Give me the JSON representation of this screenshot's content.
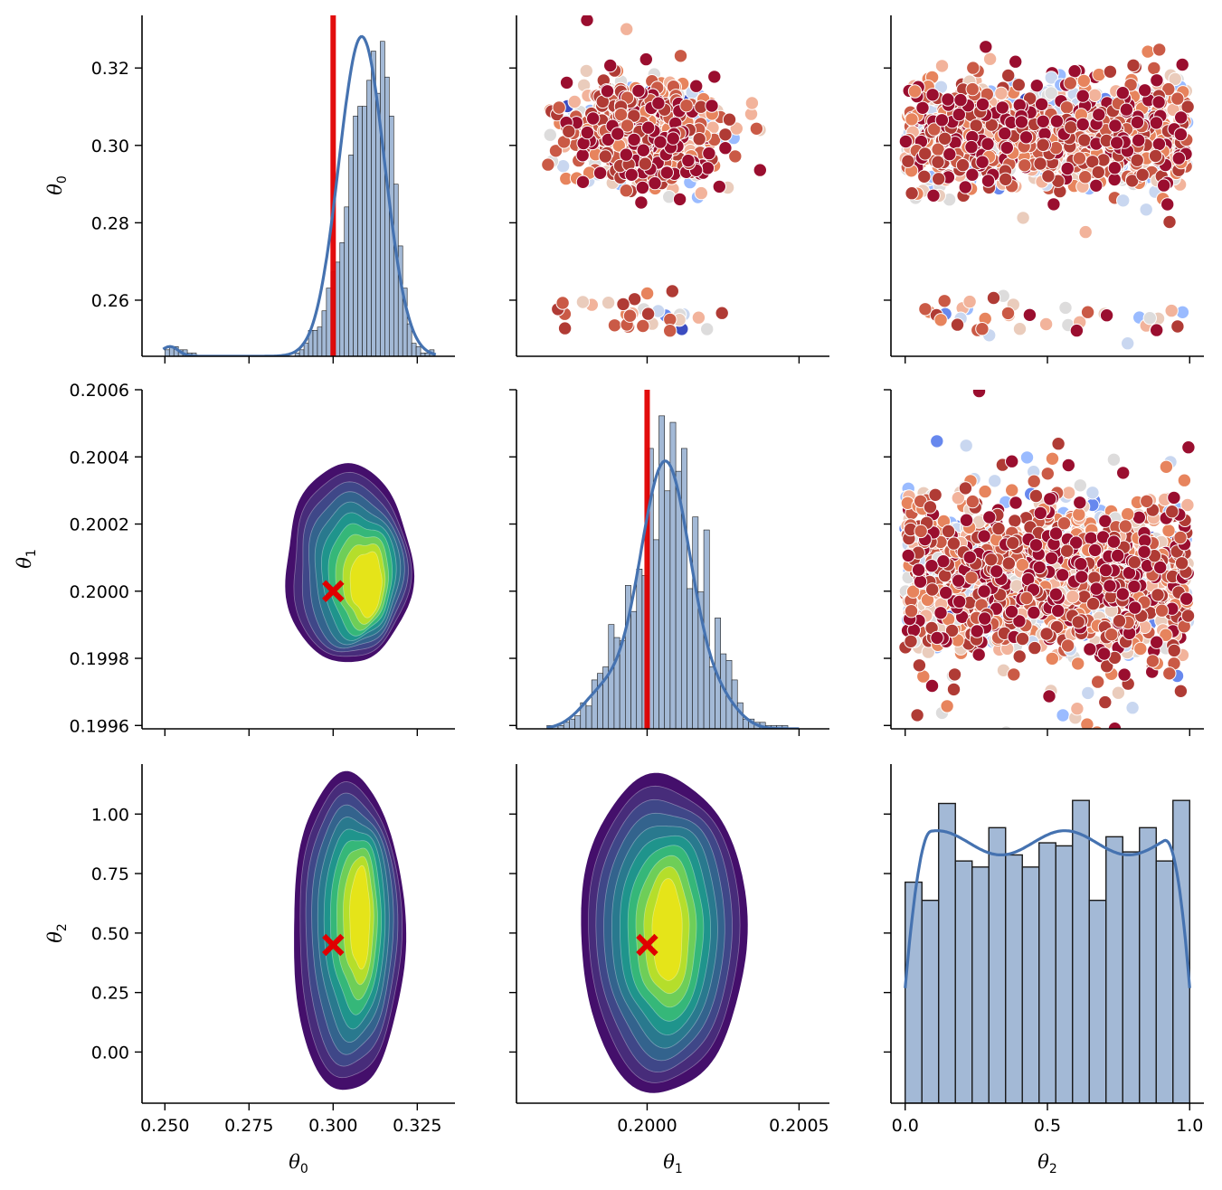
{
  "chart_data": {
    "type": "pairplot",
    "variables": [
      "θ0",
      "θ1",
      "θ2"
    ],
    "axis_labels": [
      {
        "symbol": "θ",
        "sub": "0"
      },
      {
        "symbol": "θ",
        "sub": "1"
      },
      {
        "symbol": "θ",
        "sub": "2"
      }
    ],
    "axes": [
      {
        "name": "θ0",
        "lim_x": [
          0.2432,
          0.3362
        ],
        "lim_y": [
          0.2455,
          0.3336
        ],
        "ticks_x": [
          0.25,
          0.275,
          0.3,
          0.325
        ],
        "tick_labels_x": [
          "0.250",
          "0.275",
          "0.300",
          "0.325"
        ],
        "ticks_y": [
          0.26,
          0.28,
          0.3,
          0.32
        ],
        "tick_labels_y": [
          "0.26",
          "0.28",
          "0.30",
          "0.32"
        ]
      },
      {
        "name": "θ1",
        "lim_x": [
          0.19957,
          0.2006
        ],
        "lim_y": [
          0.19959,
          0.2006
        ],
        "ticks_x": [
          0.2,
          0.2005
        ],
        "tick_labels_x": [
          "0.2000",
          "0.2005"
        ],
        "ticks_y": [
          0.1996,
          0.1998,
          0.2,
          0.2002,
          0.2004,
          0.2006
        ],
        "tick_labels_y": [
          "0.1996",
          "0.1998",
          "0.2000",
          "0.2002",
          "0.2004",
          "0.2006"
        ]
      },
      {
        "name": "θ2",
        "lim_x": [
          -0.05,
          1.05
        ],
        "lim_y": [
          -0.215,
          1.21
        ],
        "ticks_x": [
          0.0,
          0.5,
          1.0
        ],
        "tick_labels_x": [
          "0.0",
          "0.5",
          "1.0"
        ],
        "ticks_y": [
          0.0,
          0.25,
          0.5,
          0.75,
          1.0
        ],
        "tick_labels_y": [
          "0.00",
          "0.25",
          "0.50",
          "0.75",
          "1.00"
        ]
      }
    ],
    "true_values": {
      "θ0": 0.3,
      "θ1": 0.2,
      "θ2": 0.45
    },
    "diagonal": [
      {
        "variable": "θ0",
        "type": "histogram+kde",
        "bin_range": [
          0.25,
          0.33
        ],
        "bins": 60,
        "counts_relative": [
          0.02,
          0.03,
          0.03,
          0.02,
          0.02,
          0.01,
          0.01,
          0,
          0,
          0,
          0,
          0,
          0,
          0,
          0,
          0,
          0,
          0,
          0,
          0,
          0,
          0,
          0,
          0,
          0,
          0,
          0,
          0,
          0,
          0.01,
          0.02,
          0.04,
          0.08,
          0.08,
          0.09,
          0.14,
          0.21,
          0.26,
          0.29,
          0.35,
          0.46,
          0.62,
          0.74,
          0.77,
          0.77,
          0.85,
          0.94,
          0.81,
          0.97,
          0.86,
          0.74,
          0.53,
          0.34,
          0.21,
          0.1,
          0.04,
          0.03,
          0.01,
          0.01,
          0.02
        ],
        "kde_peak_x": 0.3085
      },
      {
        "variable": "θ1",
        "type": "histogram+kde",
        "bin_range": [
          0.19967,
          0.2005
        ],
        "bins": 45,
        "counts_relative": [
          0.01,
          0.01,
          0.01,
          0.02,
          0.03,
          0.04,
          0.08,
          0.07,
          0.15,
          0.17,
          0.19,
          0.32,
          0.28,
          0.27,
          0.44,
          0.36,
          0.49,
          0.47,
          0.86,
          0.58,
          0.96,
          0.73,
          0.94,
          0.79,
          0.86,
          0.43,
          0.65,
          0.42,
          0.61,
          0.19,
          0.34,
          0.23,
          0.21,
          0.15,
          0.08,
          0.03,
          0.03,
          0.02,
          0.02,
          0.01,
          0.01,
          0.01,
          0.01,
          0,
          0
        ],
        "kde_peak_x": 0.20006
      },
      {
        "variable": "θ2",
        "type": "histogram+kde",
        "bin_range": [
          0.0,
          1.0
        ],
        "bins": 17,
        "counts_relative": [
          0.73,
          0.67,
          0.99,
          0.8,
          0.78,
          0.91,
          0.82,
          0.78,
          0.86,
          0.85,
          1.0,
          0.67,
          0.88,
          0.83,
          0.91,
          0.8,
          1.0
        ]
      }
    ],
    "lower": [
      {
        "x": "θ0",
        "y": "θ1",
        "type": "kde_filled",
        "cmap": "viridis",
        "levels": 10,
        "marker": {
          "x": 0.3,
          "y": 0.2,
          "shape": "X",
          "color": "#e00000"
        }
      },
      {
        "x": "θ0",
        "y": "θ2",
        "type": "kde_filled",
        "cmap": "viridis",
        "levels": 10,
        "marker": {
          "x": 0.3,
          "y": 0.45,
          "shape": "X",
          "color": "#e00000"
        }
      },
      {
        "x": "θ1",
        "y": "θ2",
        "type": "kde_filled",
        "cmap": "viridis",
        "levels": 10,
        "marker": {
          "x": 0.2,
          "y": 0.45,
          "shape": "X",
          "color": "#e00000"
        }
      }
    ],
    "upper": [
      {
        "x": "θ1",
        "y": "θ0",
        "type": "scatter",
        "palette": "coolwarm"
      },
      {
        "x": "θ2",
        "y": "θ0",
        "type": "scatter",
        "palette": "coolwarm"
      },
      {
        "x": "θ2",
        "y": "θ1",
        "type": "scatter",
        "palette": "coolwarm"
      }
    ],
    "colors": {
      "hist_fill": "#a3b9d6",
      "hist_edge": "#1a1a1a",
      "kde_line": "#4572b0",
      "true_line": "#e00000",
      "viridis": [
        "#440f6b",
        "#472c7a",
        "#3f4788",
        "#33638d",
        "#29798e",
        "#1f948c",
        "#35b779",
        "#6ece58",
        "#b5de2b",
        "#e5e419"
      ],
      "coolwarm": [
        "#3b4cc0",
        "#6788ee",
        "#9abbff",
        "#c9d7f0",
        "#dddcdc",
        "#eaccbc",
        "#f2b39b",
        "#e7845d",
        "#ca5a46",
        "#b03b35",
        "#9a0e2f"
      ]
    },
    "grid": false,
    "legend": "none"
  }
}
